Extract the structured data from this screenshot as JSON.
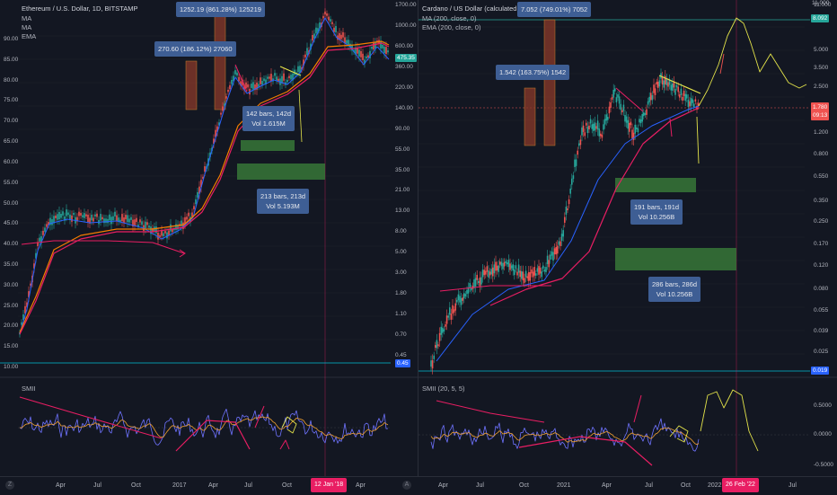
{
  "left": {
    "title": "Ethereum / U.S. Dollar, 1D, BITSTAMP",
    "indicators": [
      "MA",
      "MA",
      "EMA"
    ],
    "osc_label": "SMII",
    "price_axis": [
      "1700.00",
      "1000.00",
      "600.00",
      "360.00",
      "220.00",
      "140.00",
      "90.00",
      "55.00",
      "35.00",
      "21.00",
      "13.00",
      "8.00",
      "5.00",
      "3.00",
      "1.80",
      "1.10",
      "0.70",
      "0.45",
      "USD",
      "475.35"
    ],
    "left_axis": [
      "90.00",
      "85.00",
      "80.00",
      "75.00",
      "70.00",
      "65.00",
      "60.00",
      "55.00",
      "50.00",
      "45.00",
      "40.00",
      "35.00",
      "30.00",
      "25.00",
      "20.00",
      "15.00",
      "10.00"
    ],
    "current_price": "475.35",
    "low_price_tag": "0.45",
    "osc_axis": [],
    "boxes": {
      "top": "1252.19 (861.28%) 125219",
      "mid": "270.60 (186.12%) 27060",
      "range1": [
        "142 bars, 142d",
        "Vol 1.615M"
      ],
      "range2": [
        "213 bars, 213d",
        "Vol 5.193M"
      ]
    }
  },
  "right": {
    "title": "Cardano / US Dollar (calculated by TradingView)",
    "indicators": [
      "MA (200, close, 0)",
      "EMA (200, close, 0)"
    ],
    "osc_label": "SMII (20, 5, 5)",
    "price_axis": [
      "11.000",
      "8.092",
      "5.000",
      "3.500",
      "2.500",
      "1.780",
      "1.200",
      "0.800",
      "0.550",
      "0.350",
      "0.250",
      "0.170",
      "0.120",
      "0.080",
      "0.055",
      "0.039",
      "0.025",
      "0.019"
    ],
    "current_price": "1.780",
    "current_time": "09:13",
    "target_price": "8.092",
    "low_price_tag": "0.019",
    "osc_axis": [
      "0.5000",
      "0.0000",
      "-0.5000"
    ],
    "boxes": {
      "top": "7.052 (749.01%) 7052",
      "mid": "1.542 (163.75%) 1542",
      "range1": [
        "191 bars, 191d",
        "Vol 10.256B"
      ],
      "range2": [
        "286 bars, 286d",
        "Vol 10.256B"
      ]
    }
  },
  "timebar": {
    "left_ticks": [
      "Apr",
      "Jul",
      "Oct",
      "2017",
      "Apr",
      "Jul",
      "Oct",
      "Apr"
    ],
    "left_date": "12 Jan '18",
    "right_ticks": [
      "Apr",
      "Jul",
      "Oct",
      "2021",
      "Apr",
      "Jul",
      "Oct",
      "2022",
      "Jul"
    ],
    "right_date": "26 Feb '22"
  },
  "colors": {
    "bg": "#131722",
    "up": "#26a69a",
    "down": "#ef5350",
    "ma_pink": "#e91e63",
    "ma_orange": "#f57c00",
    "ema_blue": "#2962ff",
    "annot_yellow": "#e3e34a",
    "box_green": "#3a7d3a",
    "box_red": "#8b3a2a",
    "info_box": "#3e5e94",
    "cyan": "#00bcd4"
  }
}
